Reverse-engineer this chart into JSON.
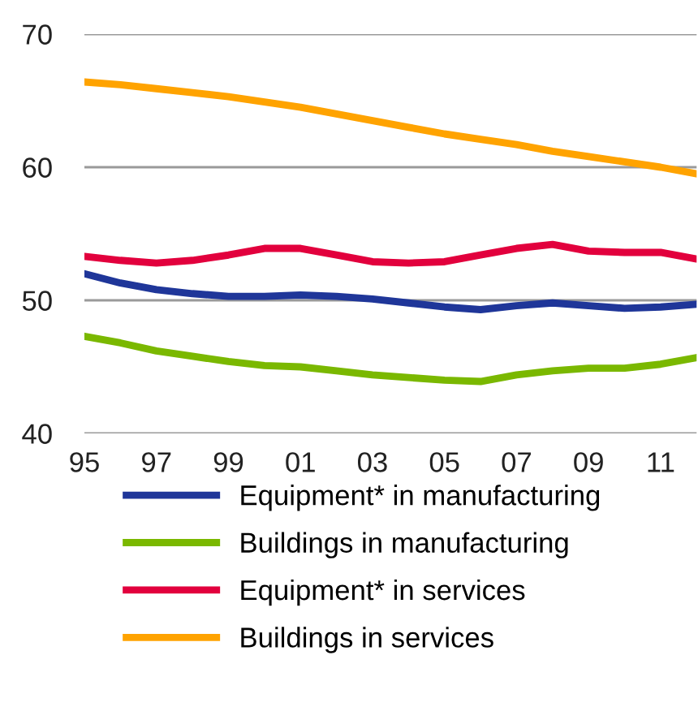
{
  "chart_data": {
    "type": "line",
    "x": [
      1995,
      1996,
      1997,
      1998,
      1999,
      2000,
      2001,
      2002,
      2003,
      2004,
      2005,
      2006,
      2007,
      2008,
      2009,
      2010,
      2011,
      2012
    ],
    "series": [
      {
        "name": "Equipment* in manufacturing",
        "color": "#1f3699",
        "values": [
          52.0,
          51.3,
          50.8,
          50.5,
          50.3,
          50.3,
          50.4,
          50.3,
          50.1,
          49.8,
          49.5,
          49.3,
          49.6,
          49.8,
          49.6,
          49.4,
          49.5,
          49.7
        ]
      },
      {
        "name": "Buildings in manufacturing",
        "color": "#7ab800",
        "values": [
          47.3,
          46.8,
          46.2,
          45.8,
          45.4,
          45.1,
          45.0,
          44.7,
          44.4,
          44.2,
          44.0,
          43.9,
          44.4,
          44.7,
          44.9,
          44.9,
          45.2,
          45.7
        ]
      },
      {
        "name": "Equipment* in services",
        "color": "#e2003d",
        "values": [
          53.3,
          53.0,
          52.8,
          53.0,
          53.4,
          53.9,
          53.9,
          53.4,
          52.9,
          52.8,
          52.9,
          53.4,
          53.9,
          54.2,
          53.7,
          53.6,
          53.6,
          53.1
        ]
      },
      {
        "name": "Buildings in services",
        "color": "#ffa300",
        "values": [
          66.4,
          66.2,
          65.9,
          65.6,
          65.3,
          64.9,
          64.5,
          64.0,
          63.5,
          63.0,
          62.5,
          62.1,
          61.7,
          61.2,
          60.8,
          60.4,
          60.0,
          59.5
        ]
      }
    ],
    "xlim": [
      1995,
      2012
    ],
    "xticks": [
      {
        "value": 1995,
        "label": "95"
      },
      {
        "value": 1997,
        "label": "97"
      },
      {
        "value": 1999,
        "label": "99"
      },
      {
        "value": 2001,
        "label": "01"
      },
      {
        "value": 2003,
        "label": "03"
      },
      {
        "value": 2005,
        "label": "05"
      },
      {
        "value": 2007,
        "label": "07"
      },
      {
        "value": 2009,
        "label": "09"
      },
      {
        "value": 2011,
        "label": "11"
      }
    ],
    "ylim": [
      40,
      70
    ],
    "yticks": [
      40,
      50,
      60,
      70
    ],
    "grid": "y",
    "legend": "bottom",
    "marker": "none",
    "line_style": "solid"
  }
}
